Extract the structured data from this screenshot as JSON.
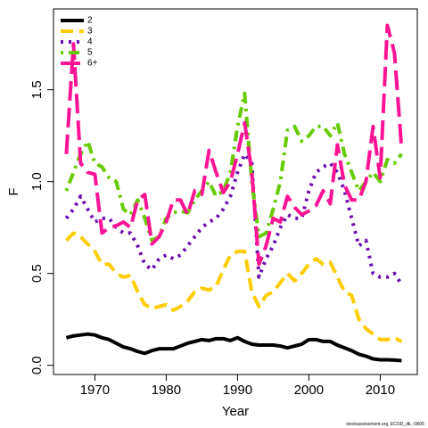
{
  "chart_data": {
    "type": "line",
    "x_label": "Year",
    "y_label": "F",
    "source": "stockassessment.org, ECOD_dk, r3605",
    "x": [
      1966,
      1967,
      1968,
      1969,
      1970,
      1971,
      1972,
      1973,
      1974,
      1975,
      1976,
      1977,
      1978,
      1979,
      1980,
      1981,
      1982,
      1983,
      1984,
      1985,
      1986,
      1987,
      1988,
      1989,
      1990,
      1991,
      1992,
      1993,
      1994,
      1995,
      1996,
      1997,
      1998,
      1999,
      2000,
      2001,
      2002,
      2003,
      2004,
      2005,
      2006,
      2007,
      2008,
      2009,
      2010,
      2011,
      2012,
      2013
    ],
    "xlim": [
      1964.2,
      2015.2
    ],
    "xticks": [
      1970,
      1980,
      1990,
      2000,
      2010
    ],
    "ylim": [
      -0.05,
      1.94
    ],
    "yticks": [
      {
        "value": 0,
        "label": "0.0"
      },
      0.5,
      {
        "value": 1,
        "label": "1.0"
      },
      1.5
    ],
    "legend": "top-left",
    "series": [
      {
        "name": "2",
        "color": "#000000",
        "dash": "solid",
        "values": [
          0.15,
          0.16,
          0.165,
          0.17,
          0.165,
          0.15,
          0.14,
          0.12,
          0.1,
          0.09,
          0.075,
          0.065,
          0.08,
          0.09,
          0.09,
          0.09,
          0.105,
          0.12,
          0.13,
          0.14,
          0.135,
          0.145,
          0.145,
          0.135,
          0.15,
          0.13,
          0.115,
          0.11,
          0.11,
          0.11,
          0.105,
          0.095,
          0.105,
          0.115,
          0.14,
          0.14,
          0.13,
          0.13,
          0.11,
          0.095,
          0.08,
          0.06,
          0.05,
          0.035,
          0.03,
          0.03,
          0.028,
          0.025
        ]
      },
      {
        "name": "3",
        "color": "#ffcc00",
        "dash": "dashed",
        "values": [
          0.68,
          0.72,
          0.7,
          0.66,
          0.62,
          0.55,
          0.55,
          0.5,
          0.48,
          0.49,
          0.4,
          0.33,
          0.31,
          0.32,
          0.33,
          0.3,
          0.32,
          0.35,
          0.4,
          0.42,
          0.41,
          0.43,
          0.52,
          0.6,
          0.62,
          0.62,
          0.4,
          0.32,
          0.38,
          0.4,
          0.45,
          0.5,
          0.46,
          0.5,
          0.55,
          0.58,
          0.55,
          0.56,
          0.48,
          0.4,
          0.38,
          0.25,
          0.2,
          0.17,
          0.14,
          0.14,
          0.15,
          0.13
        ]
      },
      {
        "name": "4",
        "color": "#6a0dad",
        "dash": "dotted",
        "values": [
          0.8,
          0.85,
          0.92,
          0.85,
          0.78,
          0.8,
          0.8,
          0.75,
          0.72,
          0.72,
          0.65,
          0.55,
          0.52,
          0.58,
          0.6,
          0.58,
          0.6,
          0.65,
          0.7,
          0.75,
          0.78,
          0.8,
          0.85,
          0.92,
          1.05,
          1.15,
          1.1,
          0.48,
          0.58,
          0.65,
          0.75,
          0.82,
          0.8,
          0.8,
          0.95,
          1.05,
          1.08,
          1.1,
          1.05,
          0.95,
          0.8,
          0.65,
          0.68,
          0.5,
          0.48,
          0.48,
          0.5,
          0.44
        ]
      },
      {
        "name": "5",
        "color": "#66cc00",
        "dash": "dotdash",
        "values": [
          0.95,
          1.05,
          1.15,
          1.22,
          1.1,
          1.08,
          1.02,
          1.0,
          0.85,
          0.82,
          0.9,
          0.8,
          0.68,
          0.7,
          0.8,
          0.83,
          0.84,
          0.83,
          0.9,
          0.95,
          1.0,
          0.92,
          0.95,
          1.05,
          1.3,
          1.48,
          1.0,
          0.7,
          0.72,
          0.85,
          1.0,
          1.28,
          1.3,
          1.22,
          1.25,
          1.3,
          1.3,
          1.25,
          1.32,
          1.15,
          1.05,
          0.95,
          1.0,
          1.05,
          1.0,
          1.12,
          1.1,
          1.15
        ]
      },
      {
        "name": "6+",
        "color": "#ff1493",
        "dash": "longdash",
        "values": [
          1.15,
          1.75,
          1.1,
          1.05,
          1.04,
          0.72,
          0.75,
          0.76,
          0.78,
          0.75,
          0.9,
          0.93,
          0.66,
          0.7,
          0.78,
          0.9,
          0.9,
          0.82,
          0.95,
          0.93,
          1.17,
          1.05,
          0.94,
          1.0,
          1.15,
          1.32,
          1.05,
          0.55,
          0.65,
          0.8,
          0.78,
          0.92,
          0.86,
          0.82,
          0.84,
          0.87,
          0.95,
          0.88,
          1.2,
          0.98,
          0.9,
          0.9,
          1.0,
          1.3,
          1.02,
          1.85,
          1.7,
          1.18
        ]
      }
    ]
  }
}
